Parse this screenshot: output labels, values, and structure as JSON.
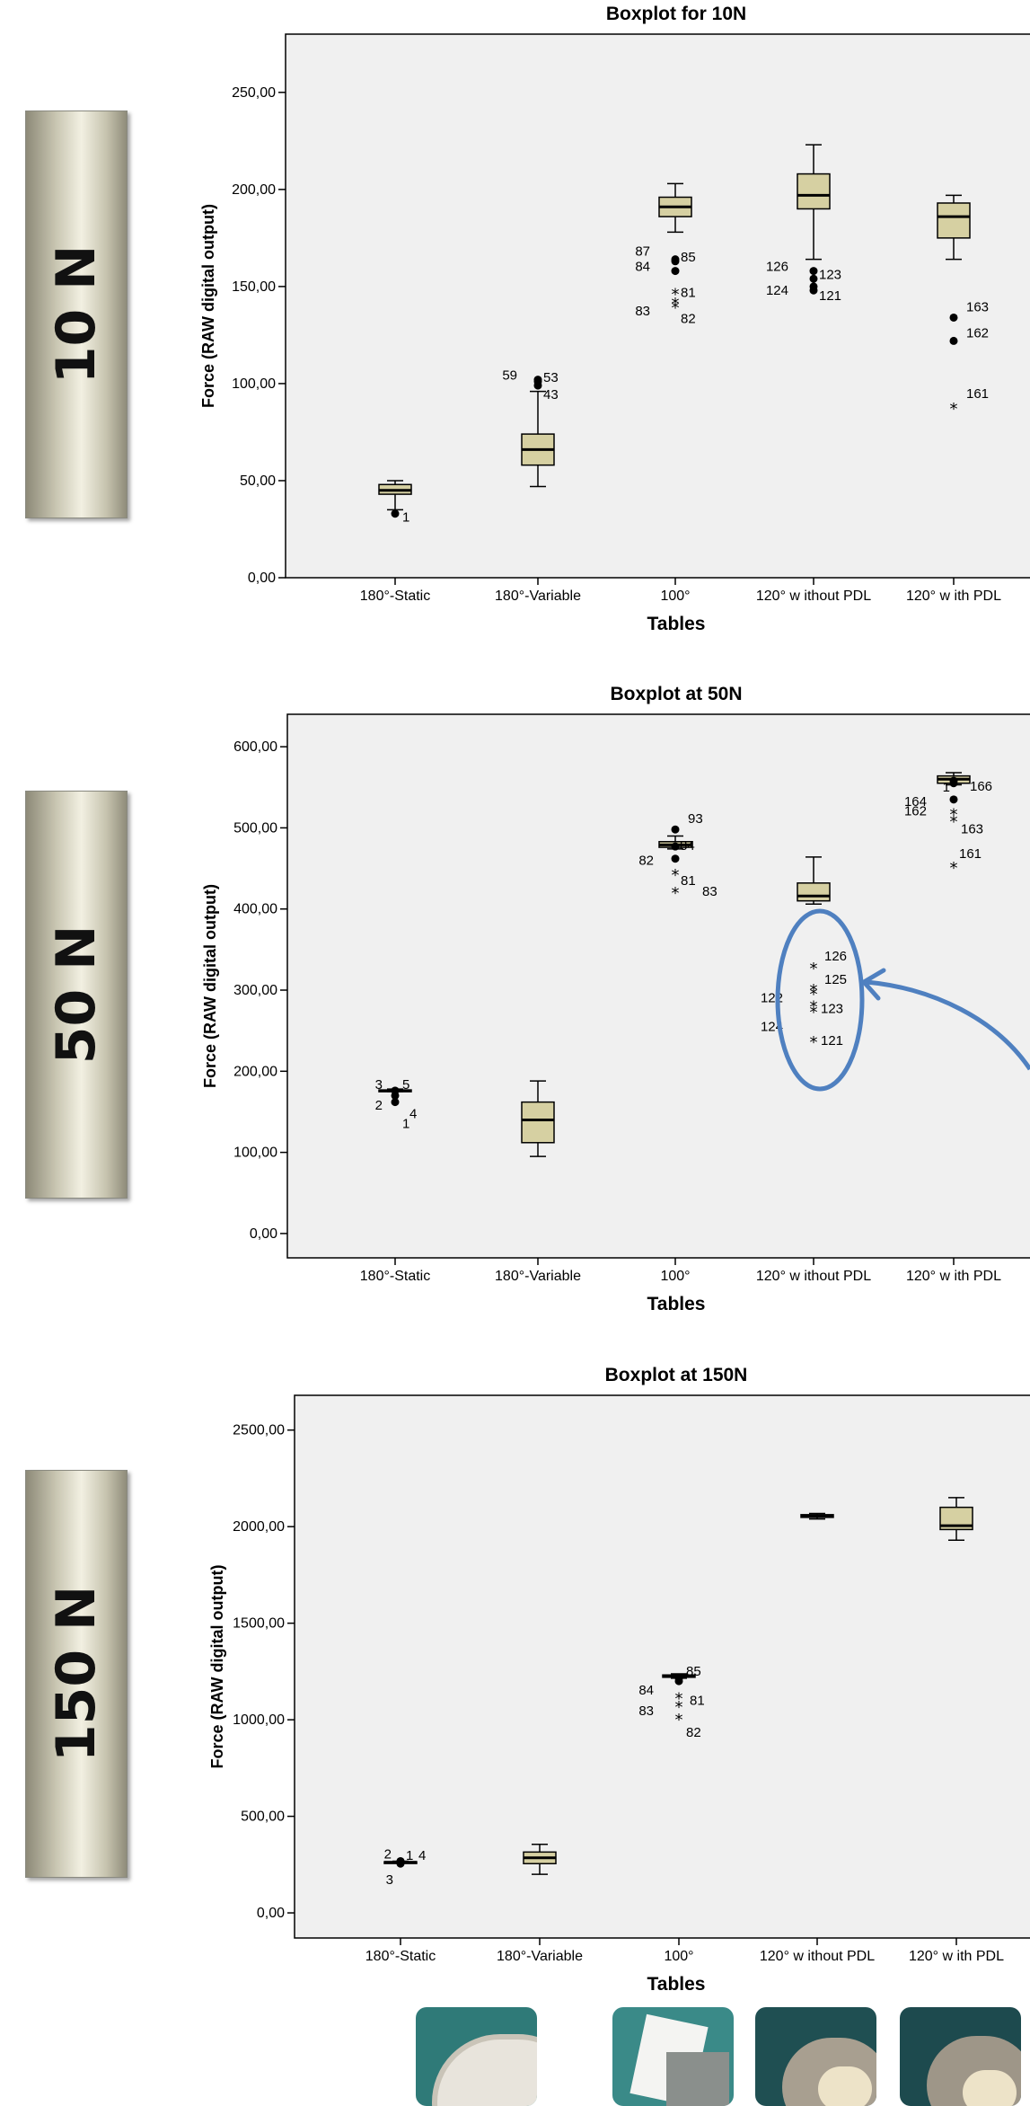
{
  "side_labels": [
    "10 N",
    "50 N",
    "150 N"
  ],
  "chart_data": [
    {
      "type": "boxplot",
      "title": "Boxplot for 10N",
      "xlabel": "Tables",
      "ylabel": "Force (RAW digital output)",
      "ylim": [
        0,
        280
      ],
      "yticks": [
        0,
        50,
        100,
        150,
        200,
        250
      ],
      "ytick_labels": [
        "0,00",
        "50,00",
        "100,00",
        "150,00",
        "200,00",
        "250,00"
      ],
      "categories": [
        "180°-Static",
        "180°-Variable",
        "100°",
        "120° w ithout PDL",
        "120° w ith PDL"
      ],
      "boxes": [
        {
          "min": 35,
          "q1": 43,
          "median": 45,
          "q3": 48,
          "max": 50
        },
        {
          "min": 47,
          "q1": 58,
          "median": 66,
          "q3": 74,
          "max": 96
        },
        {
          "min": 178,
          "q1": 186,
          "median": 191,
          "q3": 196,
          "max": 203
        },
        {
          "min": 164,
          "q1": 190,
          "median": 197,
          "q3": 208,
          "max": 223
        },
        {
          "min": 164,
          "q1": 175,
          "median": 186,
          "q3": 193,
          "max": 197
        }
      ],
      "outliers": [
        {
          "cat": 0,
          "y": 33,
          "marker": "dot",
          "label": "1"
        },
        {
          "cat": 1,
          "y": 102,
          "marker": "dot",
          "label": "59"
        },
        {
          "cat": 1,
          "y": 101,
          "marker": "dot",
          "label": "53"
        },
        {
          "cat": 1,
          "y": 99,
          "marker": "dot",
          "label": "43"
        },
        {
          "cat": 2,
          "y": 164,
          "marker": "dot",
          "label": "87"
        },
        {
          "cat": 2,
          "y": 163,
          "marker": "dot",
          "label": "85"
        },
        {
          "cat": 2,
          "y": 158,
          "marker": "dot",
          "label": "84"
        },
        {
          "cat": 2,
          "y": 147,
          "marker": "star",
          "label": "81"
        },
        {
          "cat": 2,
          "y": 142,
          "marker": "star",
          "label": "83"
        },
        {
          "cat": 2,
          "y": 140,
          "marker": "star",
          "label": "82"
        },
        {
          "cat": 3,
          "y": 158,
          "marker": "dot",
          "label": "126"
        },
        {
          "cat": 3,
          "y": 154,
          "marker": "dot",
          "label": "123"
        },
        {
          "cat": 3,
          "y": 150,
          "marker": "dot",
          "label": "124"
        },
        {
          "cat": 3,
          "y": 148,
          "marker": "dot",
          "label": "121"
        },
        {
          "cat": 4,
          "y": 134,
          "marker": "dot",
          "label": "163"
        },
        {
          "cat": 4,
          "y": 122,
          "marker": "dot",
          "label": "162"
        },
        {
          "cat": 4,
          "y": 88,
          "marker": "star",
          "label": "161"
        }
      ]
    },
    {
      "type": "boxplot",
      "title": "Boxplot at 50N",
      "xlabel": "Tables",
      "ylabel": "Force (RAW digital output)",
      "ylim": [
        -30,
        640
      ],
      "yticks": [
        0,
        100,
        200,
        300,
        400,
        500,
        600
      ],
      "ytick_labels": [
        "0,00",
        "100,00",
        "200,00",
        "300,00",
        "400,00",
        "500,00",
        "600,00"
      ],
      "categories": [
        "180°-Static",
        "180°-Variable",
        "100°",
        "120° w ithout PDL",
        "120° w ith PDL"
      ],
      "boxes": [
        {
          "min": 175,
          "q1": 175,
          "median": 176,
          "q3": 177,
          "max": 178
        },
        {
          "min": 95,
          "q1": 112,
          "median": 140,
          "q3": 162,
          "max": 188
        },
        {
          "min": 474,
          "q1": 476,
          "median": 479,
          "q3": 483,
          "max": 490
        },
        {
          "min": 406,
          "q1": 410,
          "median": 416,
          "q3": 432,
          "max": 464
        },
        {
          "min": 553,
          "q1": 555,
          "median": 560,
          "q3": 564,
          "max": 568
        }
      ],
      "outliers": [
        {
          "cat": 0,
          "y": 176,
          "marker": "dot",
          "label": "3"
        },
        {
          "cat": 0,
          "y": 176,
          "marker": "dot",
          "label": "5"
        },
        {
          "cat": 0,
          "y": 170,
          "marker": "dot",
          "label": "4"
        },
        {
          "cat": 0,
          "y": 165,
          "marker": "star",
          "label": "2"
        },
        {
          "cat": 0,
          "y": 162,
          "marker": "dot",
          "label": "1"
        },
        {
          "cat": 2,
          "y": 498,
          "marker": "dot",
          "label": "93"
        },
        {
          "cat": 2,
          "y": 477,
          "marker": "dot",
          "label": "84"
        },
        {
          "cat": 2,
          "y": 462,
          "marker": "dot",
          "label": "82"
        },
        {
          "cat": 2,
          "y": 444,
          "marker": "star",
          "label": "81"
        },
        {
          "cat": 2,
          "y": 422,
          "marker": "star",
          "label": "83"
        },
        {
          "cat": 3,
          "y": 329,
          "marker": "star",
          "label": "126"
        },
        {
          "cat": 3,
          "y": 302,
          "marker": "star",
          "label": "125"
        },
        {
          "cat": 3,
          "y": 297,
          "marker": "star",
          "label": "122"
        },
        {
          "cat": 3,
          "y": 282,
          "marker": "star",
          "label": "123"
        },
        {
          "cat": 3,
          "y": 275,
          "marker": "star",
          "label": "124"
        },
        {
          "cat": 3,
          "y": 238,
          "marker": "star",
          "label": "121"
        },
        {
          "cat": 4,
          "y": 558,
          "marker": "dot",
          "label": "166"
        },
        {
          "cat": 4,
          "y": 555,
          "marker": "dot",
          "label": "1"
        },
        {
          "cat": 4,
          "y": 535,
          "marker": "dot",
          "label": "164"
        },
        {
          "cat": 4,
          "y": 519,
          "marker": "star",
          "label": "162"
        },
        {
          "cat": 4,
          "y": 510,
          "marker": "star",
          "label": "163"
        },
        {
          "cat": 4,
          "y": 453,
          "marker": "star",
          "label": "161"
        }
      ]
    },
    {
      "type": "boxplot",
      "title": "Boxplot at 150N",
      "xlabel": "Tables",
      "ylabel": "Force (RAW digital output)",
      "ylim": [
        -130,
        2680
      ],
      "yticks": [
        0,
        500,
        1000,
        1500,
        2000,
        2500
      ],
      "ytick_labels": [
        "0,00",
        "500,00",
        "1000,00",
        "1500,00",
        "2000,00",
        "2500,00"
      ],
      "categories": [
        "180°-Static",
        "180°-Variable",
        "100°",
        "120° w ithout PDL",
        "120° w ith PDL"
      ],
      "boxes": [
        {
          "min": 258,
          "q1": 260,
          "median": 262,
          "q3": 265,
          "max": 268
        },
        {
          "min": 200,
          "q1": 255,
          "median": 285,
          "q3": 315,
          "max": 355
        },
        {
          "min": 1215,
          "q1": 1220,
          "median": 1225,
          "q3": 1232,
          "max": 1238
        },
        {
          "min": 2040,
          "q1": 2048,
          "median": 2055,
          "q3": 2062,
          "max": 2068
        },
        {
          "min": 1930,
          "q1": 1985,
          "median": 2005,
          "q3": 2100,
          "max": 2150
        }
      ],
      "outliers": [
        {
          "cat": 0,
          "y": 268,
          "marker": "dot",
          "label": "2"
        },
        {
          "cat": 0,
          "y": 265,
          "marker": "dot",
          "label": "1"
        },
        {
          "cat": 0,
          "y": 265,
          "marker": "dot",
          "label": "4"
        },
        {
          "cat": 0,
          "y": 255,
          "marker": "dot",
          "label": "3"
        },
        {
          "cat": 2,
          "y": 1215,
          "marker": "dot",
          "label": "85"
        },
        {
          "cat": 2,
          "y": 1200,
          "marker": "dot",
          "label": "84"
        },
        {
          "cat": 2,
          "y": 1120,
          "marker": "star",
          "label": "81"
        },
        {
          "cat": 2,
          "y": 1075,
          "marker": "star",
          "label": "83"
        },
        {
          "cat": 2,
          "y": 1010,
          "marker": "star",
          "label": "82"
        }
      ]
    }
  ],
  "colors": {
    "box_fill": "#d6d0a2",
    "plot_bg": "#f0f0f0",
    "highlight": "#4f80c0",
    "label_gradient_mid": "#f2f0e2"
  }
}
